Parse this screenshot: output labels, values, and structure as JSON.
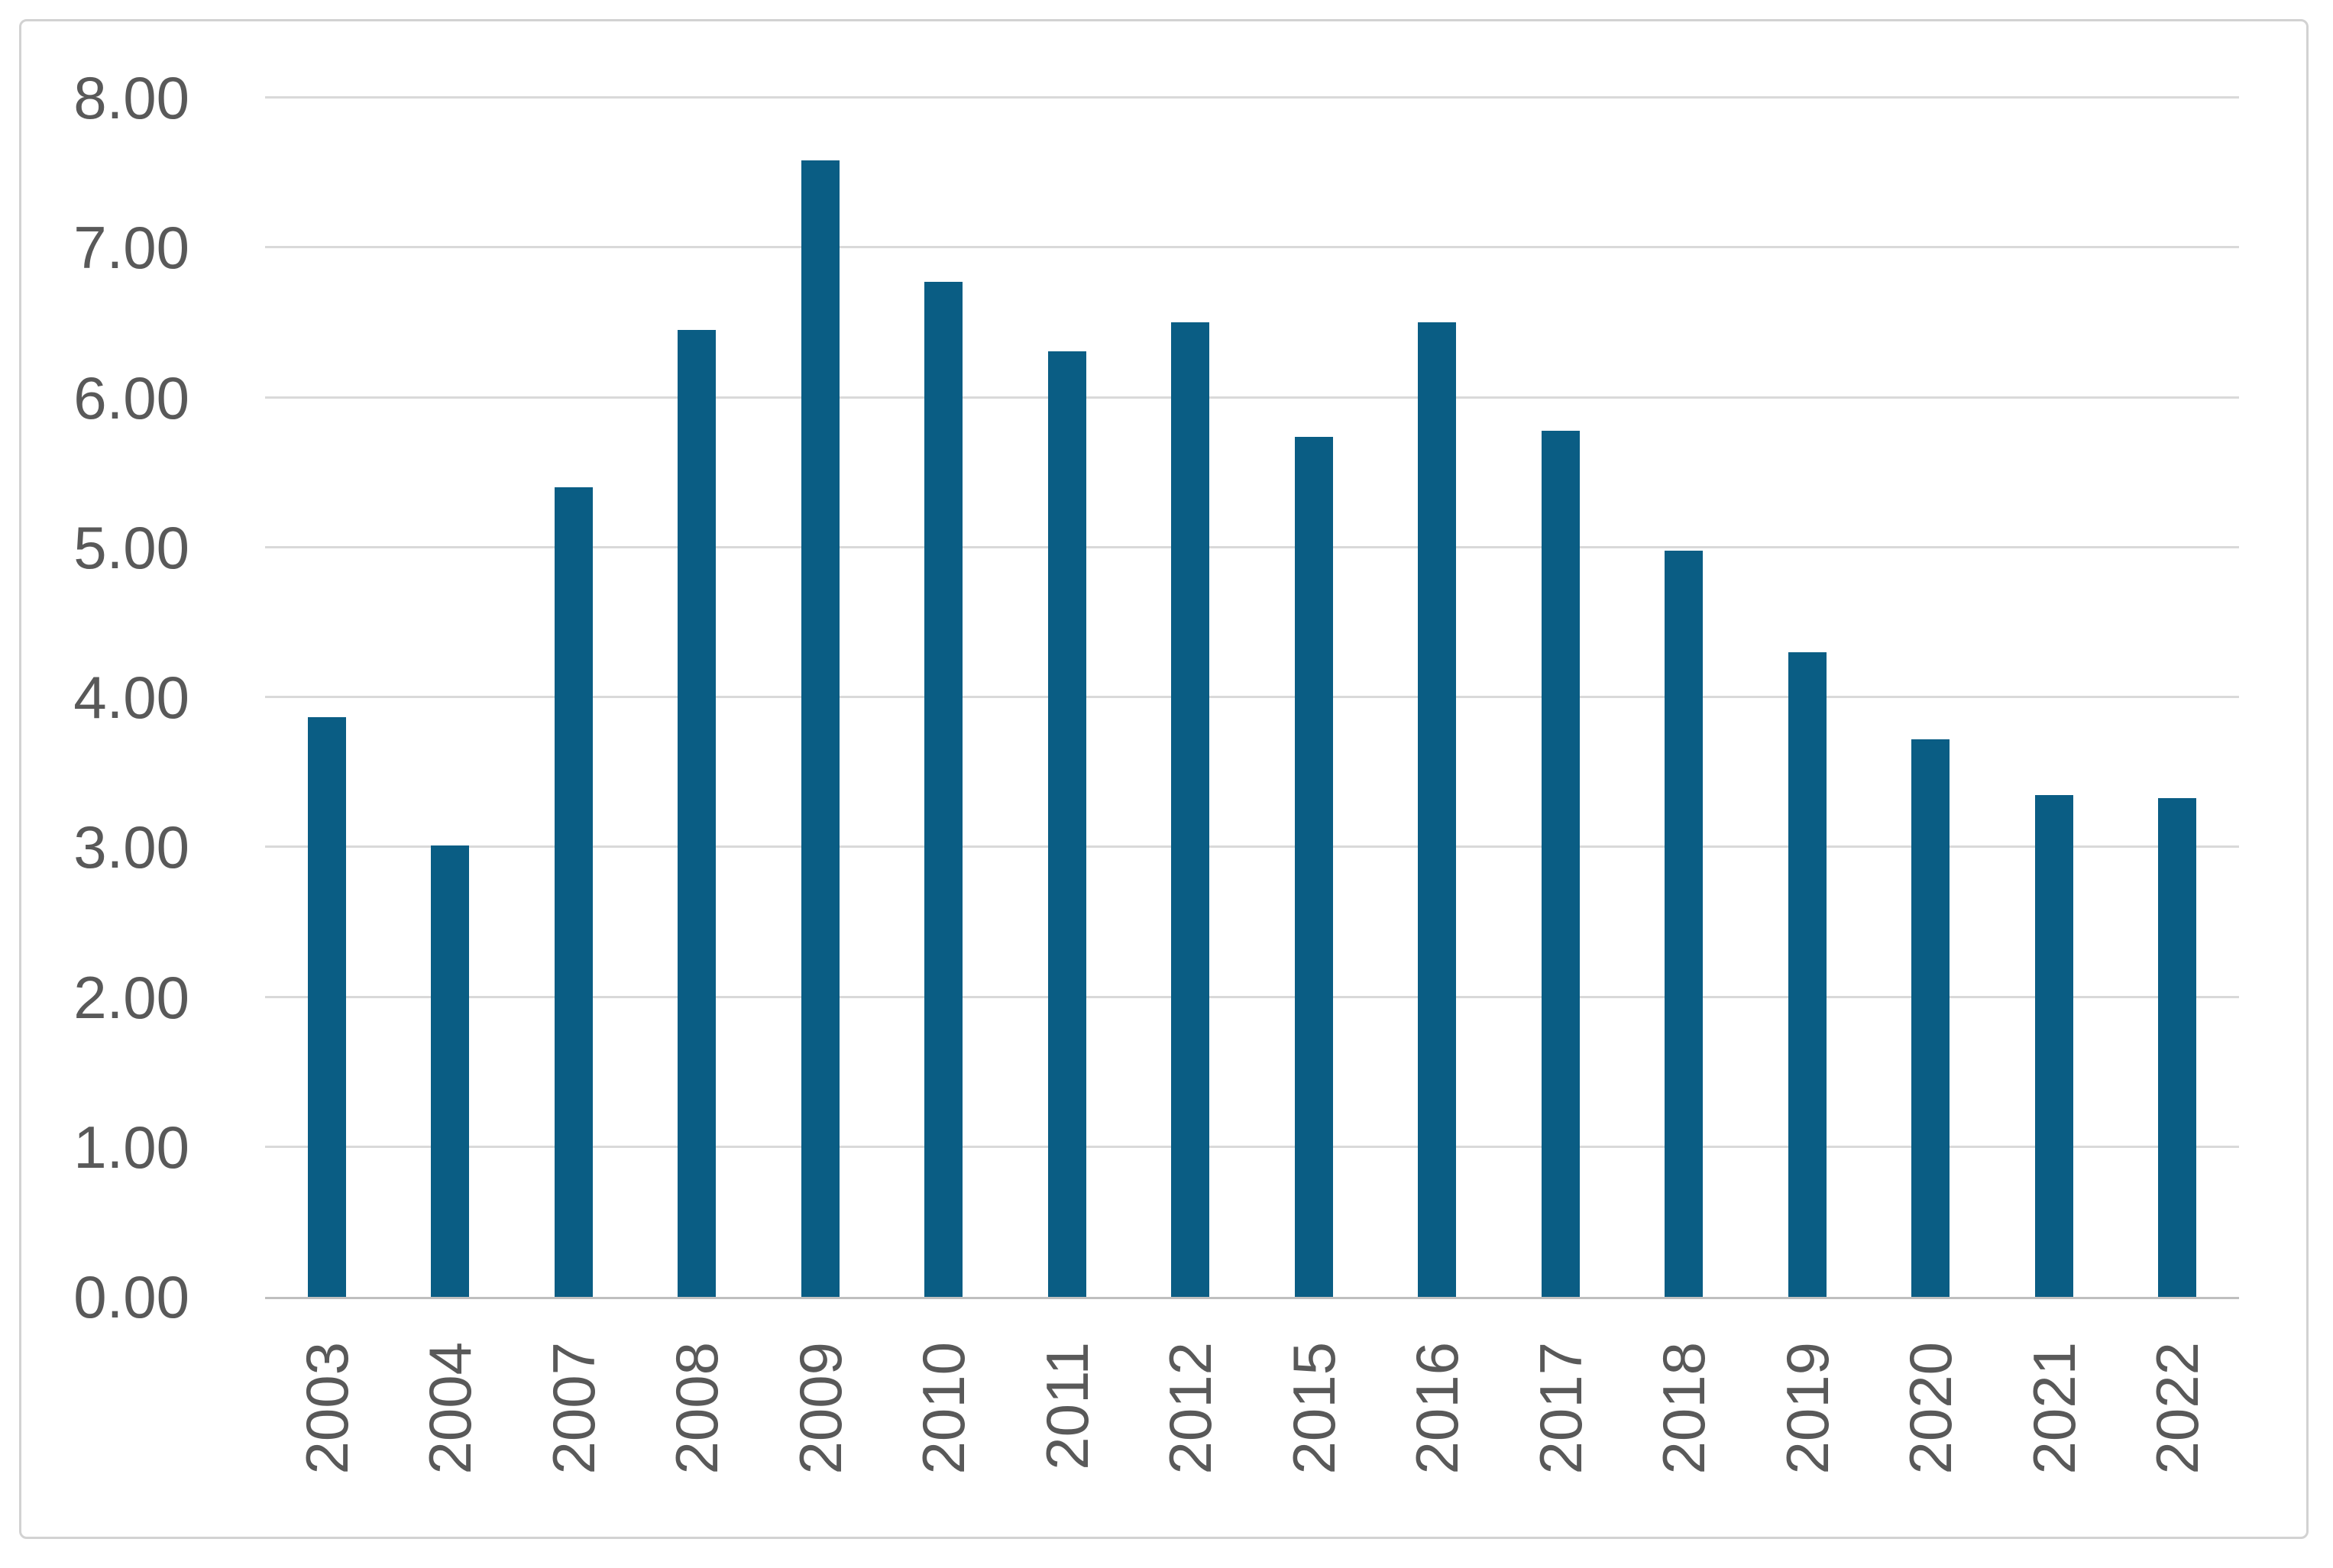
{
  "chart_data": {
    "type": "bar",
    "title": "",
    "xlabel": "",
    "ylabel": "",
    "categories": [
      "2003",
      "2004",
      "2007",
      "2008",
      "2009",
      "2010",
      "2011",
      "2012",
      "2015",
      "2016",
      "2017",
      "2018",
      "2019",
      "2020",
      "2021",
      "2022"
    ],
    "values": [
      3.87,
      3.01,
      5.4,
      6.45,
      7.58,
      6.77,
      6.31,
      6.5,
      5.74,
      6.5,
      5.78,
      4.98,
      4.3,
      3.72,
      3.35,
      3.33
    ],
    "ylim": [
      0,
      8
    ],
    "y_tick_step": 1,
    "y_tick_labels": [
      "0.00",
      "1.00",
      "2.00",
      "3.00",
      "4.00",
      "5.00",
      "6.00",
      "7.00",
      "8.00"
    ],
    "grid": "horizontal",
    "legend_position": "none",
    "x_tick_rotation_degrees": 90
  },
  "colors": {
    "bar": "#0a5d84",
    "gridline": "#d9d9d9",
    "axis_line": "#bfbfbf",
    "tick_label": "#595959",
    "frame_border": "#d2d2d2",
    "background": "#ffffff"
  }
}
